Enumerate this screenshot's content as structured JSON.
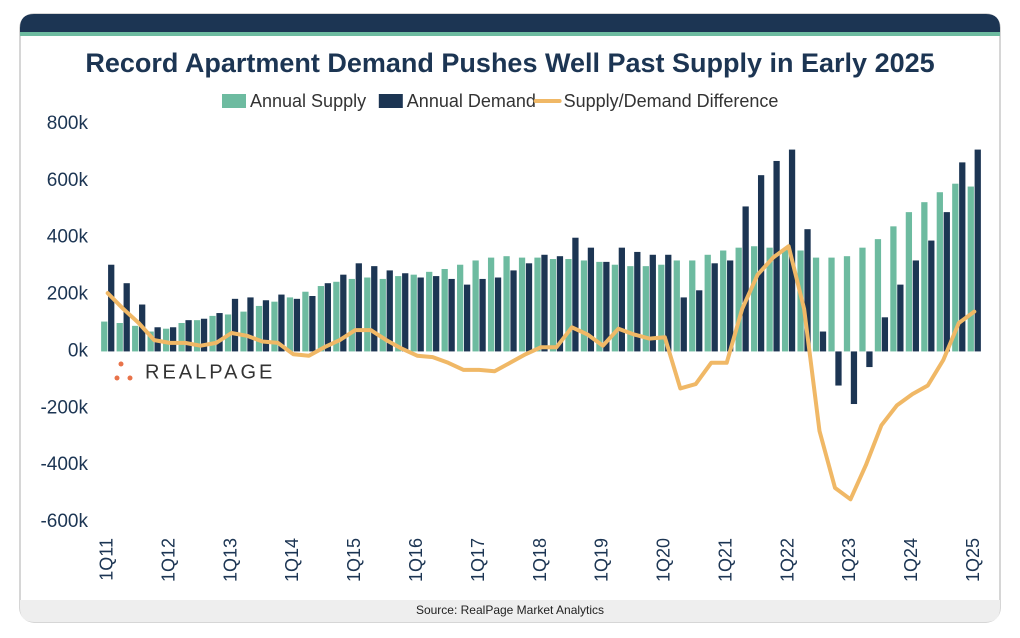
{
  "chart_data": {
    "type": "bar-line",
    "title": "Record Apartment Demand Pushes Well Past Supply in Early 2025",
    "source": "Source: RealPage Market Analytics",
    "logo": "REALPAGE",
    "categories": [
      "1Q11",
      null,
      null,
      null,
      "1Q12",
      null,
      null,
      null,
      "1Q13",
      null,
      null,
      null,
      "1Q14",
      null,
      null,
      null,
      "1Q15",
      null,
      null,
      null,
      "1Q16",
      null,
      null,
      null,
      "1Q17",
      null,
      null,
      null,
      "1Q18",
      null,
      null,
      null,
      "1Q19",
      null,
      null,
      null,
      "1Q20",
      null,
      null,
      null,
      "1Q21",
      null,
      null,
      null,
      "1Q22",
      null,
      null,
      null,
      "1Q23",
      null,
      null,
      null,
      "1Q24",
      null,
      null,
      null,
      "1Q25"
    ],
    "series": [
      {
        "name": "Annual Supply",
        "kind": "bar",
        "color": "#6dbba0",
        "values": [
          105000,
          100000,
          90000,
          70000,
          80000,
          100000,
          110000,
          125000,
          130000,
          140000,
          160000,
          175000,
          190000,
          210000,
          230000,
          245000,
          255000,
          260000,
          255000,
          265000,
          270000,
          280000,
          290000,
          305000,
          320000,
          330000,
          335000,
          330000,
          330000,
          325000,
          325000,
          320000,
          315000,
          305000,
          300000,
          300000,
          305000,
          320000,
          320000,
          340000,
          355000,
          365000,
          370000,
          365000,
          360000,
          355000,
          330000,
          330000,
          335000,
          365000,
          395000,
          440000,
          490000,
          525000,
          560000,
          590000,
          580000
        ]
      },
      {
        "name": "Annual Demand",
        "kind": "bar",
        "color": "#1c3553",
        "values": [
          305000,
          240000,
          165000,
          85000,
          85000,
          110000,
          115000,
          135000,
          185000,
          190000,
          180000,
          200000,
          185000,
          195000,
          240000,
          270000,
          310000,
          300000,
          285000,
          275000,
          260000,
          265000,
          255000,
          235000,
          255000,
          260000,
          285000,
          310000,
          340000,
          335000,
          400000,
          365000,
          315000,
          365000,
          350000,
          340000,
          340000,
          190000,
          215000,
          310000,
          320000,
          510000,
          620000,
          670000,
          710000,
          430000,
          70000,
          -120000,
          -185000,
          -55000,
          120000,
          235000,
          320000,
          390000,
          490000,
          665000,
          710000
        ]
      },
      {
        "name": "Supply/Demand Difference",
        "kind": "line",
        "color": "#f0b866",
        "values": [
          205000,
          150000,
          100000,
          40000,
          30000,
          30000,
          20000,
          30000,
          65000,
          55000,
          35000,
          30000,
          -10000,
          -15000,
          15000,
          40000,
          75000,
          75000,
          40000,
          10000,
          -15000,
          -20000,
          -40000,
          -65000,
          -65000,
          -70000,
          -40000,
          -10000,
          15000,
          15000,
          85000,
          60000,
          20000,
          80000,
          60000,
          45000,
          50000,
          -130000,
          -115000,
          -40000,
          -40000,
          150000,
          270000,
          330000,
          370000,
          150000,
          -280000,
          -480000,
          -520000,
          -400000,
          -260000,
          -190000,
          -150000,
          -120000,
          -30000,
          100000,
          140000
        ]
      }
    ],
    "ylim": [
      -600000,
      800000
    ],
    "yticks": [
      {
        "value": -600000,
        "label": "-600k"
      },
      {
        "value": -400000,
        "label": "-400k"
      },
      {
        "value": -200000,
        "label": "-200k"
      },
      {
        "value": 0,
        "label": "0k"
      },
      {
        "value": 200000,
        "label": "200k"
      },
      {
        "value": 400000,
        "label": "400k"
      },
      {
        "value": 600000,
        "label": "600k"
      },
      {
        "value": 800000,
        "label": "800k"
      }
    ],
    "grid": false
  }
}
